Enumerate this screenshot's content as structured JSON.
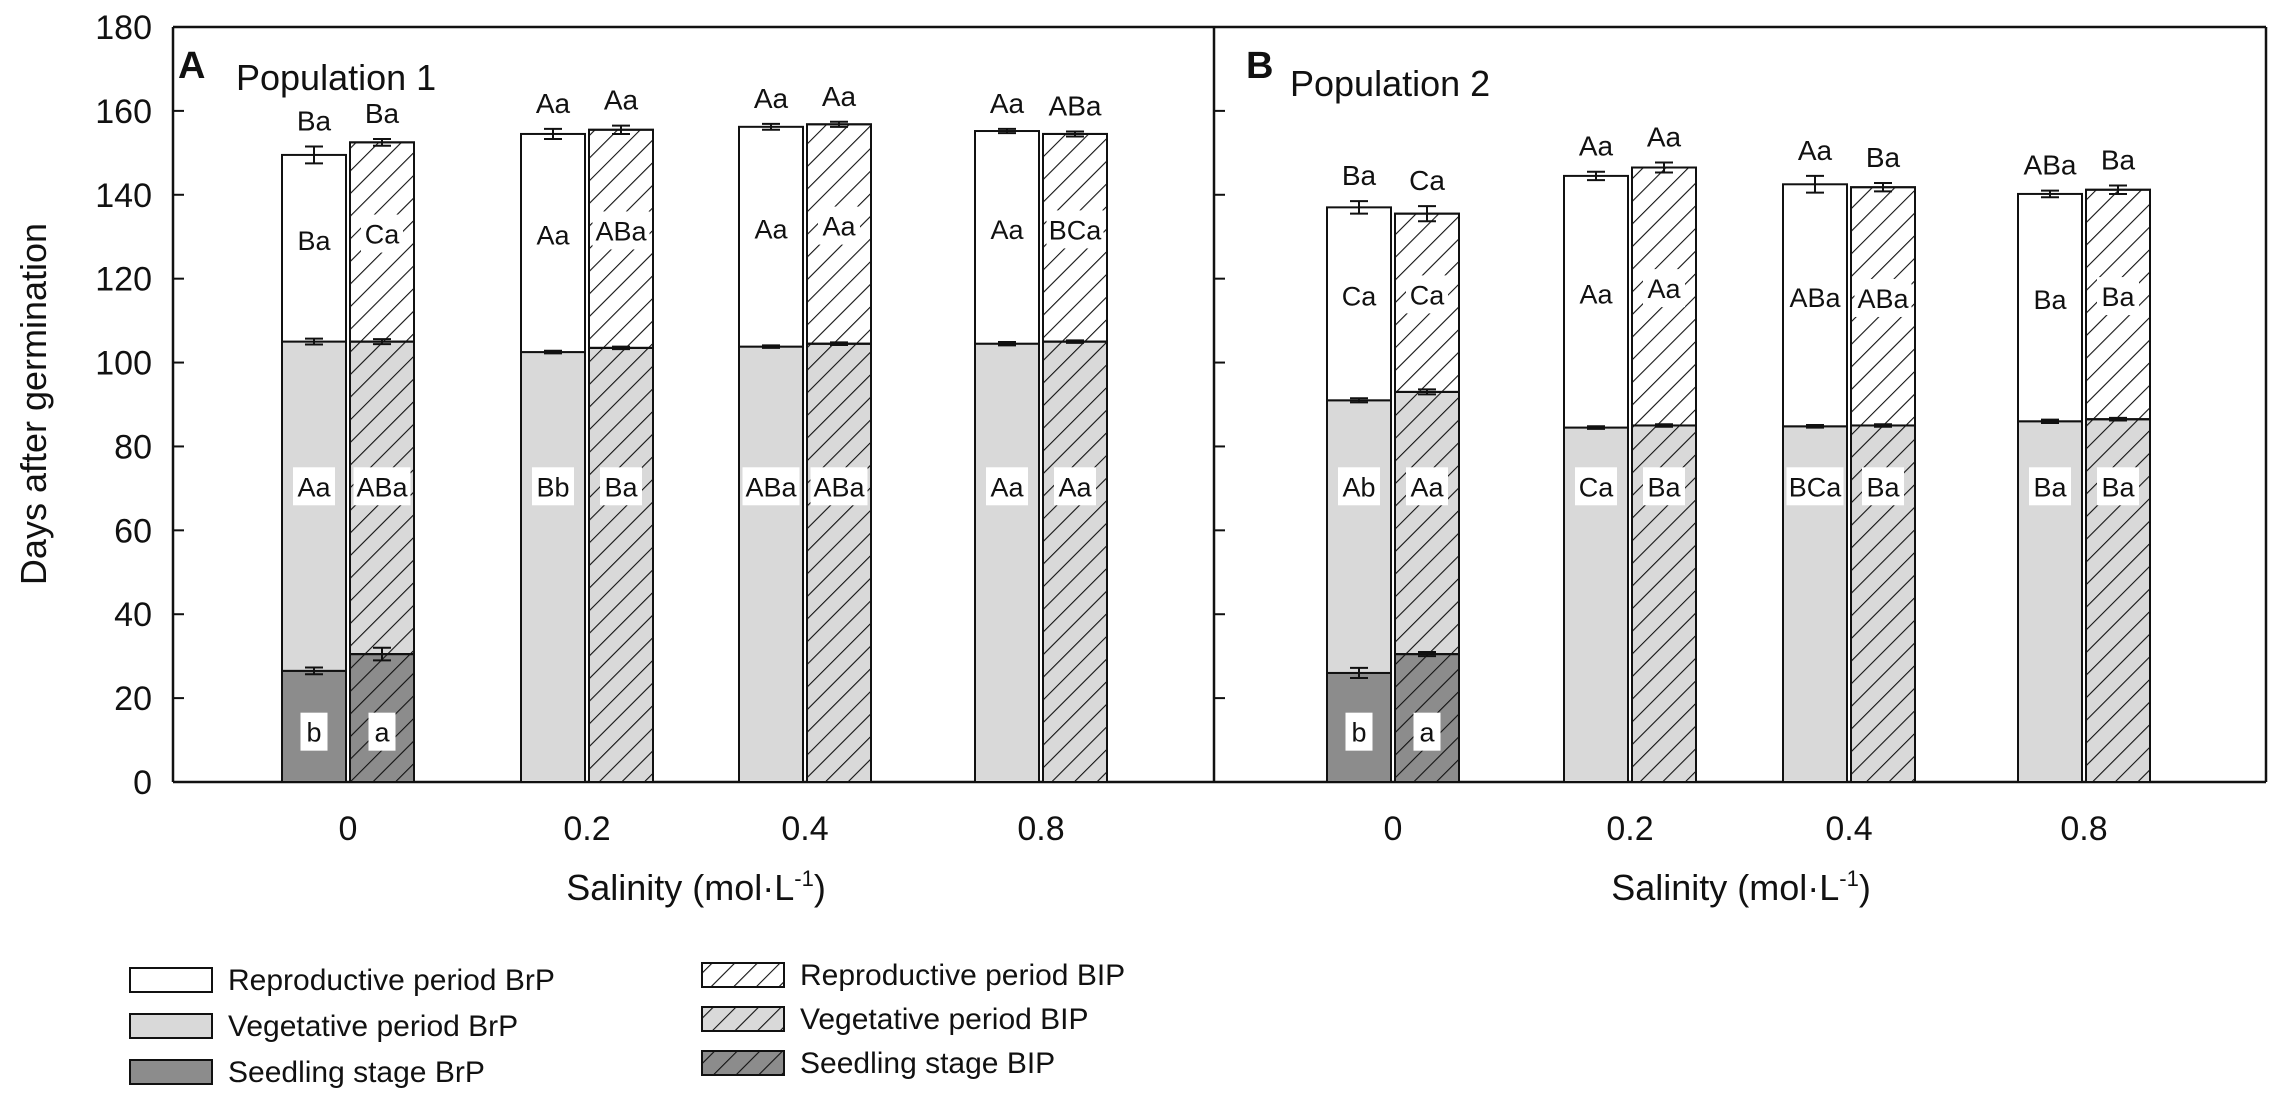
{
  "chart_data": {
    "type": "bar",
    "stacked": true,
    "ylabel": "Days after germination",
    "xlabel": "Salinity (mol·L",
    "xlabel_sup": "-1",
    "xlabel_end": ")",
    "ylim": [
      0,
      180
    ],
    "yticks": [
      0,
      20,
      40,
      60,
      80,
      100,
      120,
      140,
      160,
      180
    ],
    "categories": [
      "0",
      "0.2",
      "0.4",
      "0.8"
    ],
    "colors": {
      "seedling": "#8c8c8c",
      "vegetative": "#d9d9d9",
      "reproductive": "#ffffff",
      "stroke": "#111111"
    },
    "legend": {
      "placement": "bottom-left",
      "items": [
        {
          "label": "Reproductive period BrP",
          "fill": "white",
          "hatch": false
        },
        {
          "label": "Reproductive period BIP",
          "fill": "white",
          "hatch": true
        },
        {
          "label": "Vegetative period BrP",
          "fill": "lightgray",
          "hatch": false
        },
        {
          "label": "Vegetative period BIP",
          "fill": "lightgray",
          "hatch": true
        },
        {
          "label": "Seedling stage BrP",
          "fill": "darkgray",
          "hatch": false
        },
        {
          "label": "Seedling stage BIP",
          "fill": "darkgray",
          "hatch": true
        }
      ]
    },
    "panels": [
      {
        "letter": "A",
        "title": "Population 1",
        "bars": [
          {
            "category": "0",
            "series": "BrP",
            "seedling": 26.5,
            "seedling_err": 0.8,
            "vegetative_end": 105,
            "vegetative_err": 0.7,
            "total": 149.5,
            "total_err": 2.0,
            "seedling_label": "b",
            "vegetative_label": "Aa",
            "reproductive_label": "Ba",
            "top_label": "Ba"
          },
          {
            "category": "0",
            "series": "BIP",
            "seedling": 30.5,
            "seedling_err": 1.5,
            "vegetative_end": 105,
            "vegetative_err": 0.6,
            "total": 152.5,
            "total_err": 0.8,
            "seedling_label": "a",
            "vegetative_label": "ABa",
            "reproductive_label": "Ca",
            "top_label": "Ba"
          },
          {
            "category": "0.2",
            "series": "BrP",
            "seedling": 0,
            "vegetative_end": 102.5,
            "vegetative_err": 0.3,
            "total": 154.5,
            "total_err": 1.2,
            "seedling_label": "",
            "vegetative_label": "Bb",
            "reproductive_label": "Aa",
            "top_label": "Aa"
          },
          {
            "category": "0.2",
            "series": "BIP",
            "seedling": 0,
            "vegetative_end": 103.5,
            "vegetative_err": 0.3,
            "total": 155.5,
            "total_err": 1.0,
            "seedling_label": "",
            "vegetative_label": "Ba",
            "reproductive_label": "ABa",
            "top_label": "Aa"
          },
          {
            "category": "0.4",
            "series": "BrP",
            "seedling": 0,
            "vegetative_end": 103.8,
            "vegetative_err": 0.3,
            "total": 156.2,
            "total_err": 0.7,
            "seedling_label": "",
            "vegetative_label": "ABa",
            "reproductive_label": "Aa",
            "top_label": "Aa"
          },
          {
            "category": "0.4",
            "series": "BIP",
            "seedling": 0,
            "vegetative_end": 104.5,
            "vegetative_err": 0.3,
            "total": 156.8,
            "total_err": 0.6,
            "seedling_label": "",
            "vegetative_label": "ABa",
            "reproductive_label": "Aa",
            "top_label": "Aa"
          },
          {
            "category": "0.8",
            "series": "BrP",
            "seedling": 0,
            "vegetative_end": 104.5,
            "vegetative_err": 0.4,
            "total": 155.2,
            "total_err": 0.5,
            "seedling_label": "",
            "vegetative_label": "Aa",
            "reproductive_label": "Aa",
            "top_label": "Aa"
          },
          {
            "category": "0.8",
            "series": "BIP",
            "seedling": 0,
            "vegetative_end": 105,
            "vegetative_err": 0.3,
            "total": 154.5,
            "total_err": 0.6,
            "seedling_label": "",
            "vegetative_label": "Aa",
            "reproductive_label": "BCa",
            "top_label": "ABa"
          }
        ]
      },
      {
        "letter": "B",
        "title": "Population 2",
        "bars": [
          {
            "category": "0",
            "series": "BrP",
            "seedling": 26,
            "seedling_err": 1.2,
            "vegetative_end": 91,
            "vegetative_err": 0.5,
            "total": 137,
            "total_err": 1.5,
            "seedling_label": "b",
            "vegetative_label": "Ab",
            "reproductive_label": "Ca",
            "top_label": "Ba"
          },
          {
            "category": "0",
            "series": "BIP",
            "seedling": 30.5,
            "seedling_err": 0.5,
            "vegetative_end": 93,
            "vegetative_err": 0.6,
            "total": 135.5,
            "total_err": 1.8,
            "seedling_label": "a",
            "vegetative_label": "Aa",
            "reproductive_label": "Ca",
            "top_label": "Ca"
          },
          {
            "category": "0.2",
            "series": "BrP",
            "seedling": 0,
            "vegetative_end": 84.5,
            "vegetative_err": 0.3,
            "total": 144.5,
            "total_err": 1.0,
            "seedling_label": "",
            "vegetative_label": "Ca",
            "reproductive_label": "Aa",
            "top_label": "Aa"
          },
          {
            "category": "0.2",
            "series": "BIP",
            "seedling": 0,
            "vegetative_end": 85,
            "vegetative_err": 0.3,
            "total": 146.5,
            "total_err": 1.2,
            "seedling_label": "",
            "vegetative_label": "Ba",
            "reproductive_label": "Aa",
            "top_label": "Aa"
          },
          {
            "category": "0.4",
            "series": "BrP",
            "seedling": 0,
            "vegetative_end": 84.8,
            "vegetative_err": 0.3,
            "total": 142.5,
            "total_err": 2.0,
            "seedling_label": "",
            "vegetative_label": "BCa",
            "reproductive_label": "ABa",
            "top_label": "Aa"
          },
          {
            "category": "0.4",
            "series": "BIP",
            "seedling": 0,
            "vegetative_end": 85,
            "vegetative_err": 0.3,
            "total": 141.8,
            "total_err": 1.0,
            "seedling_label": "",
            "vegetative_label": "Ba",
            "reproductive_label": "ABa",
            "top_label": "Ba"
          },
          {
            "category": "0.8",
            "series": "BrP",
            "seedling": 0,
            "vegetative_end": 86,
            "vegetative_err": 0.4,
            "total": 140.2,
            "total_err": 0.8,
            "seedling_label": "",
            "vegetative_label": "Ba",
            "reproductive_label": "Ba",
            "top_label": "ABa"
          },
          {
            "category": "0.8",
            "series": "BIP",
            "seedling": 0,
            "vegetative_end": 86.5,
            "vegetative_err": 0.3,
            "total": 141.2,
            "total_err": 1.0,
            "seedling_label": "",
            "vegetative_label": "Ba",
            "reproductive_label": "Ba",
            "top_label": "Ba"
          }
        ]
      }
    ]
  }
}
